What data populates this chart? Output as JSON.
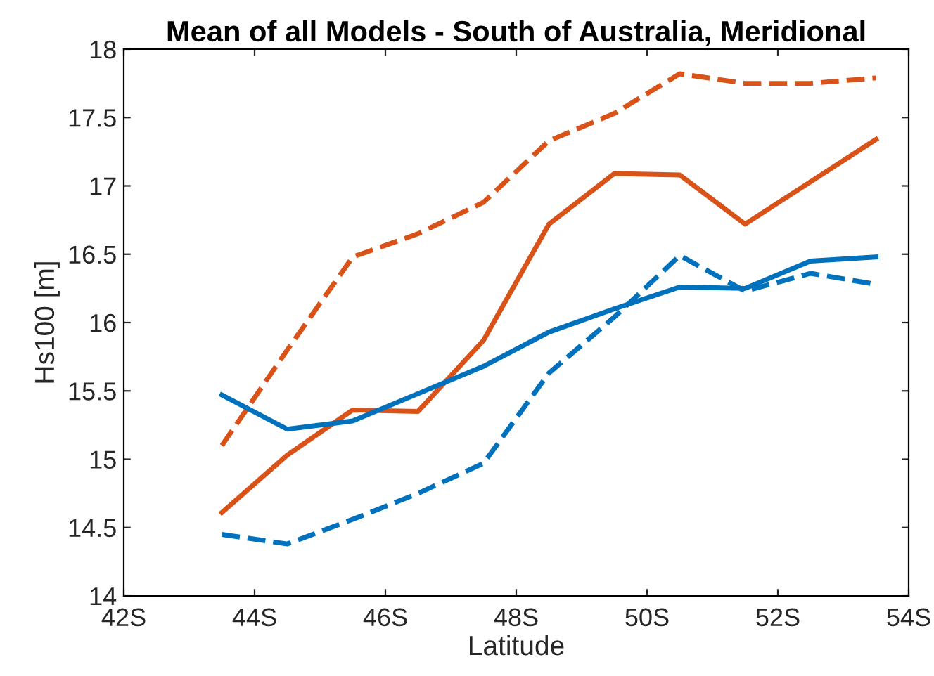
{
  "chart_data": {
    "type": "line",
    "title": "Mean of all Models - South of Australia, Meridional",
    "xlabel": "Latitude",
    "ylabel": "Hs100 [m]",
    "x": [
      43.5,
      44.5,
      45.5,
      46.5,
      47.5,
      48.5,
      49.5,
      50.5,
      51.5,
      52.5,
      53.5
    ],
    "series": [
      {
        "color": "#d95319",
        "line_style": "solid",
        "values": [
          14.61,
          15.03,
          15.36,
          15.35,
          15.87,
          16.72,
          17.09,
          17.08,
          16.72,
          17.03,
          17.34
        ]
      },
      {
        "color": "#d95319",
        "line_style": "dashed",
        "values": [
          15.1,
          15.8,
          16.48,
          16.65,
          16.88,
          17.33,
          17.53,
          17.82,
          17.75,
          17.75,
          17.79
        ]
      },
      {
        "color": "#0072bd",
        "line_style": "solid",
        "values": [
          15.47,
          15.22,
          15.28,
          15.48,
          15.68,
          15.93,
          16.1,
          16.26,
          16.25,
          16.45,
          16.48
        ]
      },
      {
        "color": "#0072bd",
        "line_style": "dashed",
        "values": [
          14.45,
          14.38,
          14.56,
          14.75,
          14.97,
          15.63,
          16.04,
          16.49,
          16.23,
          16.36,
          16.28
        ]
      }
    ],
    "xlim": [
      42,
      54
    ],
    "xticks": [
      {
        "value": 42,
        "label": "42S"
      },
      {
        "value": 44,
        "label": "44S"
      },
      {
        "value": 46,
        "label": "46S"
      },
      {
        "value": 48,
        "label": "48S"
      },
      {
        "value": 50,
        "label": "50S"
      },
      {
        "value": 52,
        "label": "52S"
      },
      {
        "value": 54,
        "label": "54S"
      }
    ],
    "ylim": [
      14,
      18
    ],
    "yticks": [
      14,
      14.5,
      15,
      15.5,
      16,
      16.5,
      17,
      17.5,
      18
    ],
    "grid": false,
    "legend": false,
    "marker": "none"
  }
}
